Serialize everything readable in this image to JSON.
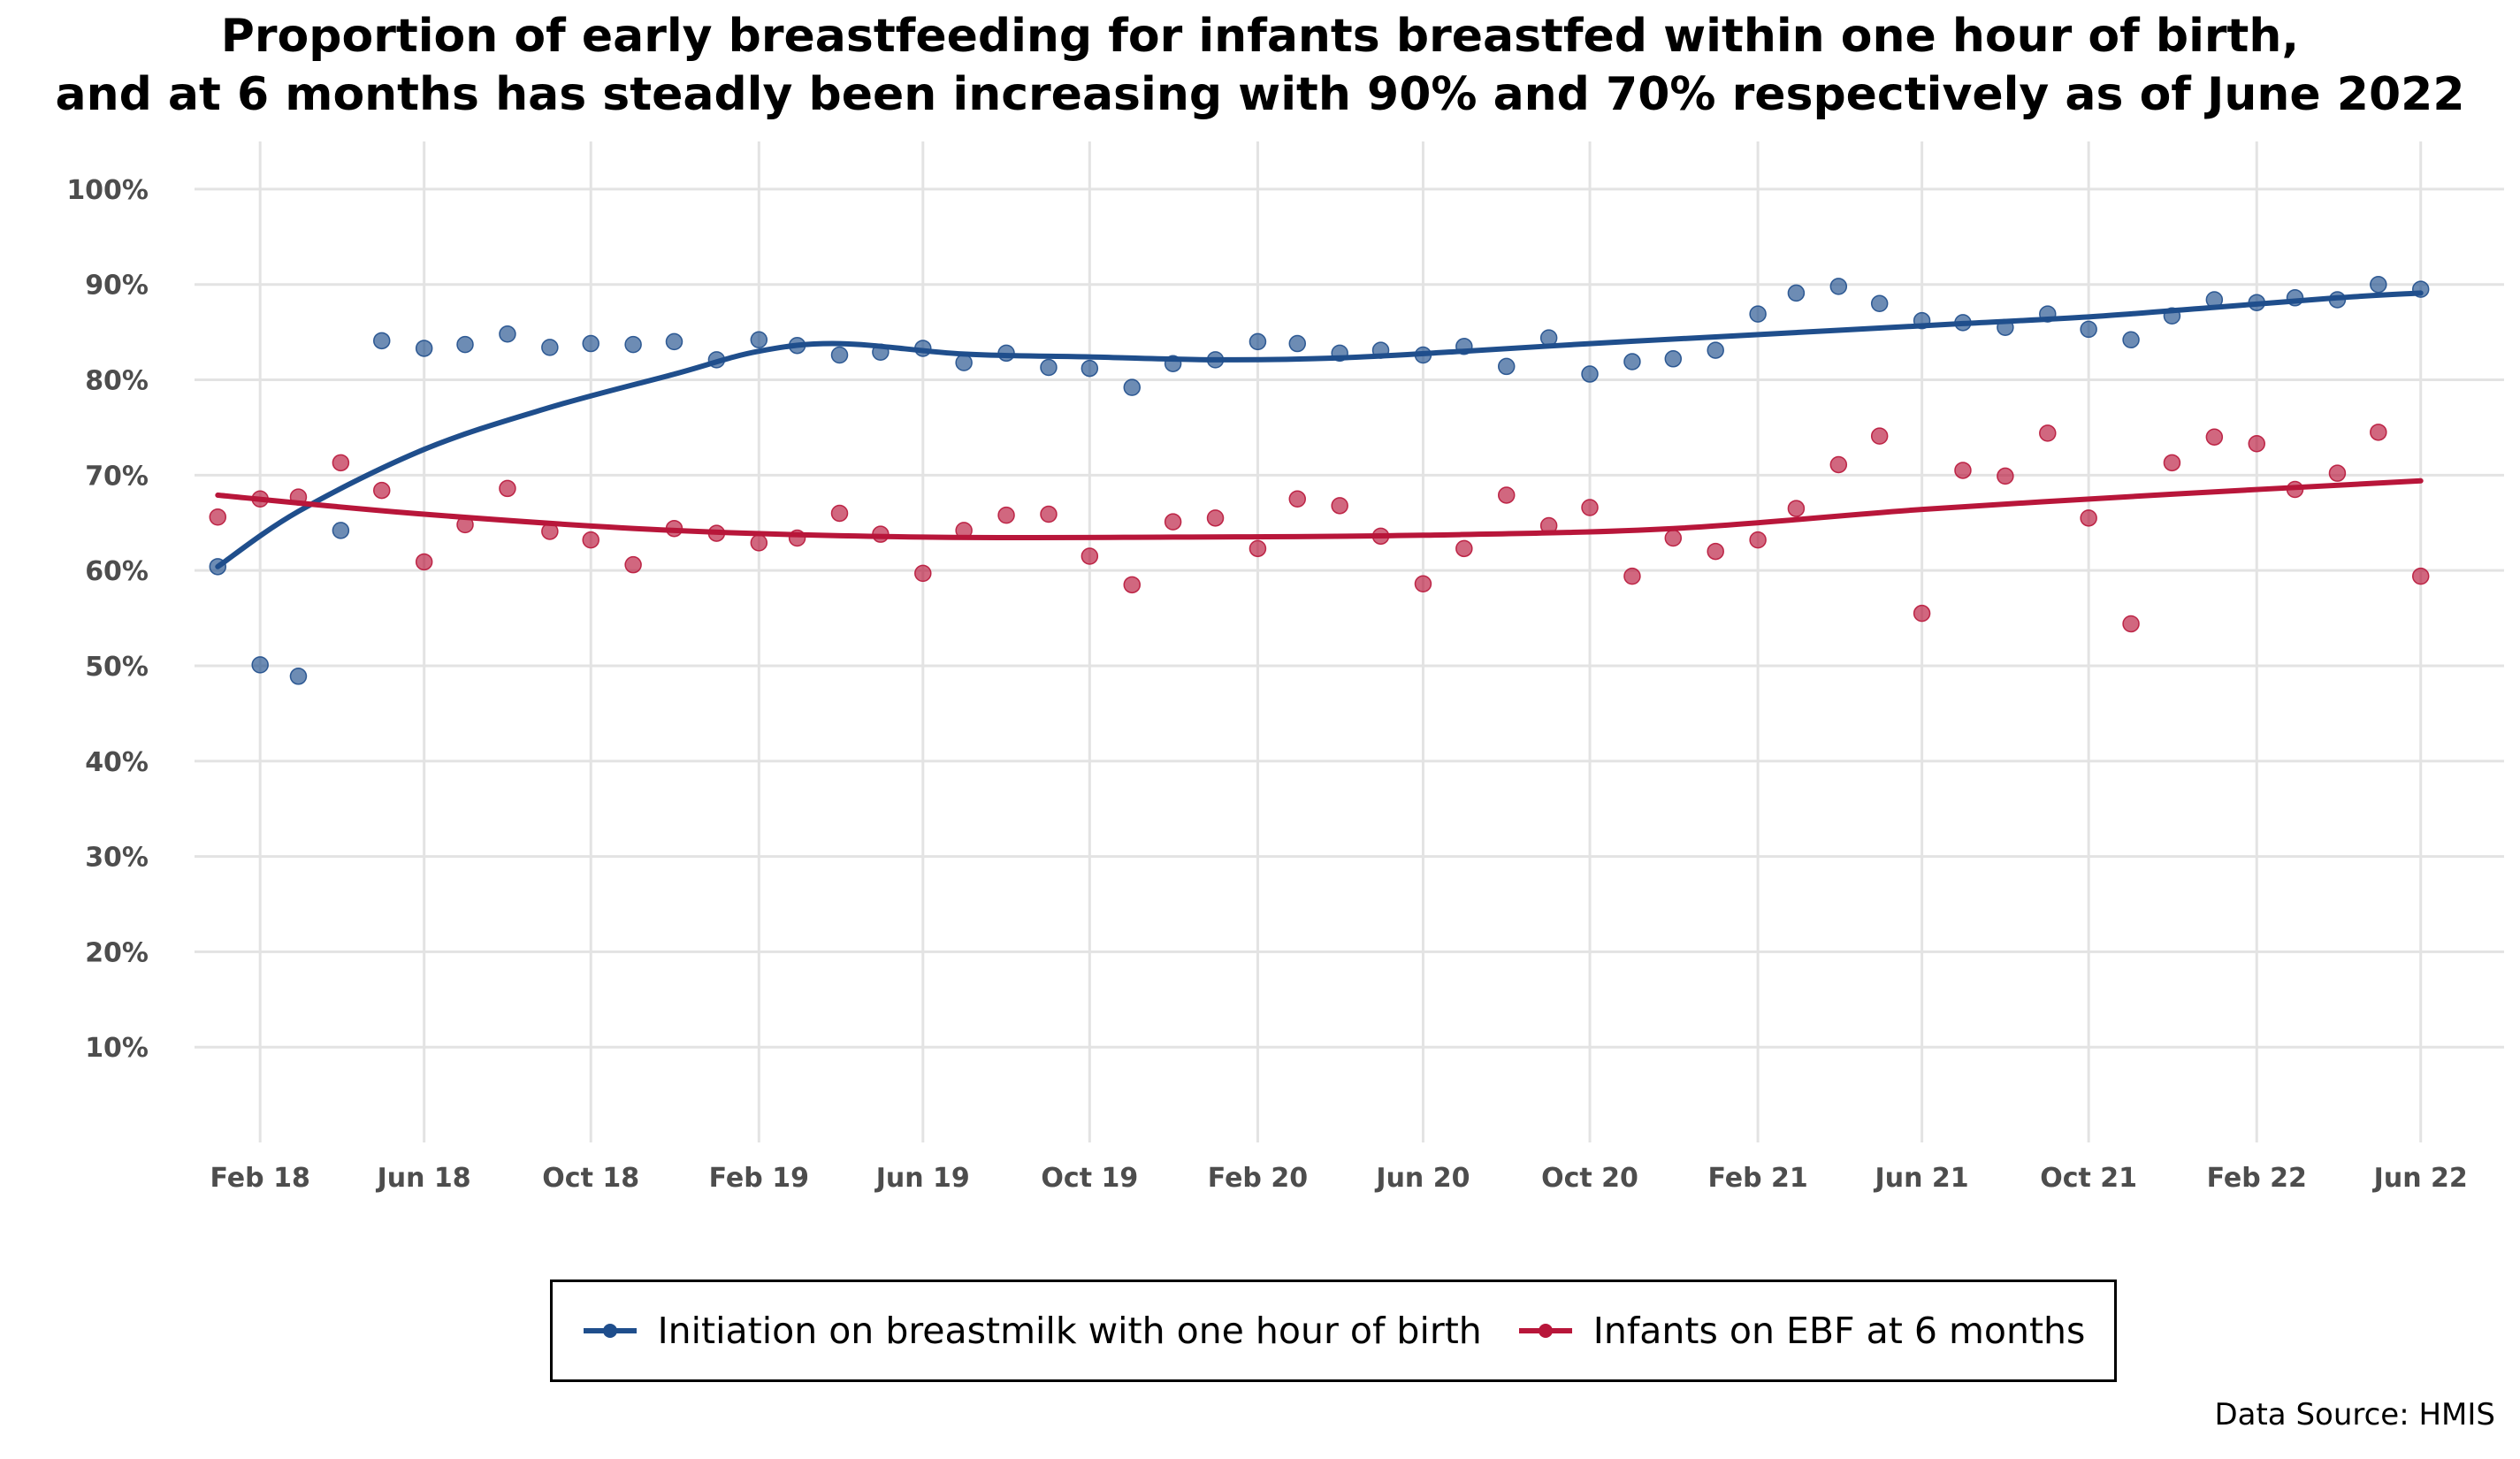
{
  "chart_data": {
    "type": "scatter",
    "title_lines": [
      "Proportion of early breastfeeding for infants breastfed within one hour of birth,",
      "and at 6 months has steadly been increasing with 90% and 70% respectively as of June 2022"
    ],
    "xlabel": "",
    "ylabel": "",
    "ylim": [
      0,
      1.05
    ],
    "y_ticks": [
      0.1,
      0.2,
      0.3,
      0.4,
      0.5,
      0.6,
      0.7,
      0.8,
      0.9,
      1.0
    ],
    "y_tick_labels": [
      "10%",
      "20%",
      "30%",
      "40%",
      "50%",
      "60%",
      "70%",
      "80%",
      "90%",
      "100%"
    ],
    "x_range": [
      "2017-12-15",
      "2022-08-01"
    ],
    "x_ticks": [
      "2018-02-01",
      "2018-06-01",
      "2018-10-01",
      "2019-02-01",
      "2019-06-01",
      "2019-10-01",
      "2020-02-01",
      "2020-06-01",
      "2020-10-01",
      "2021-02-01",
      "2021-06-01",
      "2021-10-01",
      "2022-02-01",
      "2022-06-01"
    ],
    "x_tick_labels": [
      "Feb 18",
      "Jun 18",
      "Oct 18",
      "Feb 19",
      "Jun 19",
      "Oct 19",
      "Feb 20",
      "Jun 20",
      "Oct 20",
      "Feb 21",
      "Jun 21",
      "Oct 21",
      "Feb 22",
      "Jun 22"
    ],
    "grid": true,
    "legend_position": "bottom",
    "source": "Data Source: HMIS",
    "series": [
      {
        "name": "Initiation on breastmilk with one hour of birth",
        "color": "#1f4e8c",
        "points": [
          [
            "2018-01-01",
            0.604
          ],
          [
            "2018-02-01",
            0.501
          ],
          [
            "2018-03-01",
            0.489
          ],
          [
            "2018-04-01",
            0.642
          ],
          [
            "2018-05-01",
            0.841
          ],
          [
            "2018-06-01",
            0.833
          ],
          [
            "2018-07-01",
            0.837
          ],
          [
            "2018-08-01",
            0.848
          ],
          [
            "2018-09-01",
            0.834
          ],
          [
            "2018-10-01",
            0.838
          ],
          [
            "2018-11-01",
            0.837
          ],
          [
            "2018-12-01",
            0.84
          ],
          [
            "2019-01-01",
            0.821
          ],
          [
            "2019-02-01",
            0.842
          ],
          [
            "2019-03-01",
            0.836
          ],
          [
            "2019-04-01",
            0.826
          ],
          [
            "2019-05-01",
            0.829
          ],
          [
            "2019-06-01",
            0.833
          ],
          [
            "2019-07-01",
            0.818
          ],
          [
            "2019-08-01",
            0.828
          ],
          [
            "2019-09-01",
            0.813
          ],
          [
            "2019-10-01",
            0.812
          ],
          [
            "2019-11-01",
            0.792
          ],
          [
            "2019-12-01",
            0.817
          ],
          [
            "2020-01-01",
            0.821
          ],
          [
            "2020-02-01",
            0.84
          ],
          [
            "2020-03-01",
            0.838
          ],
          [
            "2020-04-01",
            0.828
          ],
          [
            "2020-05-01",
            0.831
          ],
          [
            "2020-06-01",
            0.826
          ],
          [
            "2020-07-01",
            0.835
          ],
          [
            "2020-08-01",
            0.814
          ],
          [
            "2020-09-01",
            0.844
          ],
          [
            "2020-10-01",
            0.806
          ],
          [
            "2020-11-01",
            0.819
          ],
          [
            "2020-12-01",
            0.822
          ],
          [
            "2021-01-01",
            0.831
          ],
          [
            "2021-02-01",
            0.869
          ],
          [
            "2021-03-01",
            0.891
          ],
          [
            "2021-04-01",
            0.898
          ],
          [
            "2021-05-01",
            0.88
          ],
          [
            "2021-06-01",
            0.862
          ],
          [
            "2021-07-01",
            0.86
          ],
          [
            "2021-08-01",
            0.855
          ],
          [
            "2021-09-01",
            0.869
          ],
          [
            "2021-10-01",
            0.853
          ],
          [
            "2021-11-01",
            0.842
          ],
          [
            "2021-12-01",
            0.867
          ],
          [
            "2022-01-01",
            0.884
          ],
          [
            "2022-02-01",
            0.881
          ],
          [
            "2022-03-01",
            0.886
          ],
          [
            "2022-04-01",
            0.884
          ],
          [
            "2022-05-01",
            0.9
          ],
          [
            "2022-06-01",
            0.895
          ]
        ],
        "trend": [
          [
            "2018-01-01",
            0.604
          ],
          [
            "2018-03-01",
            0.662
          ],
          [
            "2018-06-01",
            0.727
          ],
          [
            "2018-09-01",
            0.771
          ],
          [
            "2018-12-01",
            0.806
          ],
          [
            "2019-02-01",
            0.83
          ],
          [
            "2019-04-01",
            0.838
          ],
          [
            "2019-07-01",
            0.827
          ],
          [
            "2019-10-01",
            0.824
          ],
          [
            "2020-01-01",
            0.821
          ],
          [
            "2020-04-01",
            0.823
          ],
          [
            "2020-07-01",
            0.83
          ],
          [
            "2020-10-01",
            0.838
          ],
          [
            "2021-01-01",
            0.845
          ],
          [
            "2021-04-01",
            0.852
          ],
          [
            "2021-07-01",
            0.859
          ],
          [
            "2021-10-01",
            0.866
          ],
          [
            "2022-01-01",
            0.876
          ],
          [
            "2022-04-01",
            0.886
          ],
          [
            "2022-06-01",
            0.891
          ]
        ]
      },
      {
        "name": "Infants on EBF at 6 months",
        "color": "#b8163a",
        "points": [
          [
            "2018-01-01",
            0.656
          ],
          [
            "2018-02-01",
            0.675
          ],
          [
            "2018-03-01",
            0.677
          ],
          [
            "2018-04-01",
            0.713
          ],
          [
            "2018-05-01",
            0.684
          ],
          [
            "2018-06-01",
            0.609
          ],
          [
            "2018-07-01",
            0.648
          ],
          [
            "2018-08-01",
            0.686
          ],
          [
            "2018-09-01",
            0.641
          ],
          [
            "2018-10-01",
            0.632
          ],
          [
            "2018-11-01",
            0.606
          ],
          [
            "2018-12-01",
            0.644
          ],
          [
            "2019-01-01",
            0.639
          ],
          [
            "2019-02-01",
            0.629
          ],
          [
            "2019-03-01",
            0.634
          ],
          [
            "2019-04-01",
            0.66
          ],
          [
            "2019-05-01",
            0.638
          ],
          [
            "2019-06-01",
            0.597
          ],
          [
            "2019-07-01",
            0.642
          ],
          [
            "2019-08-01",
            0.658
          ],
          [
            "2019-09-01",
            0.659
          ],
          [
            "2019-10-01",
            0.615
          ],
          [
            "2019-11-01",
            0.585
          ],
          [
            "2019-12-01",
            0.651
          ],
          [
            "2020-01-01",
            0.655
          ],
          [
            "2020-02-01",
            0.623
          ],
          [
            "2020-03-01",
            0.675
          ],
          [
            "2020-04-01",
            0.668
          ],
          [
            "2020-05-01",
            0.636
          ],
          [
            "2020-06-01",
            0.586
          ],
          [
            "2020-07-01",
            0.623
          ],
          [
            "2020-08-01",
            0.679
          ],
          [
            "2020-09-01",
            0.647
          ],
          [
            "2020-10-01",
            0.666
          ],
          [
            "2020-11-01",
            0.594
          ],
          [
            "2020-12-01",
            0.634
          ],
          [
            "2021-01-01",
            0.62
          ],
          [
            "2021-02-01",
            0.632
          ],
          [
            "2021-03-01",
            0.665
          ],
          [
            "2021-04-01",
            0.711
          ],
          [
            "2021-05-01",
            0.741
          ],
          [
            "2021-06-01",
            0.555
          ],
          [
            "2021-07-01",
            0.705
          ],
          [
            "2021-08-01",
            0.699
          ],
          [
            "2021-09-01",
            0.744
          ],
          [
            "2021-10-01",
            0.655
          ],
          [
            "2021-11-01",
            0.544
          ],
          [
            "2021-12-01",
            0.713
          ],
          [
            "2022-01-01",
            0.74
          ],
          [
            "2022-02-01",
            0.733
          ],
          [
            "2022-03-01",
            0.685
          ],
          [
            "2022-04-01",
            0.702
          ],
          [
            "2022-05-01",
            0.745
          ],
          [
            "2022-06-01",
            0.594
          ]
        ],
        "trend": [
          [
            "2018-01-01",
            0.679
          ],
          [
            "2018-06-01",
            0.659
          ],
          [
            "2018-12-01",
            0.642
          ],
          [
            "2019-06-01",
            0.635
          ],
          [
            "2019-12-01",
            0.635
          ],
          [
            "2020-06-01",
            0.637
          ],
          [
            "2020-12-01",
            0.644
          ],
          [
            "2021-06-01",
            0.664
          ],
          [
            "2021-12-01",
            0.68
          ],
          [
            "2022-06-01",
            0.694
          ]
        ]
      }
    ]
  }
}
